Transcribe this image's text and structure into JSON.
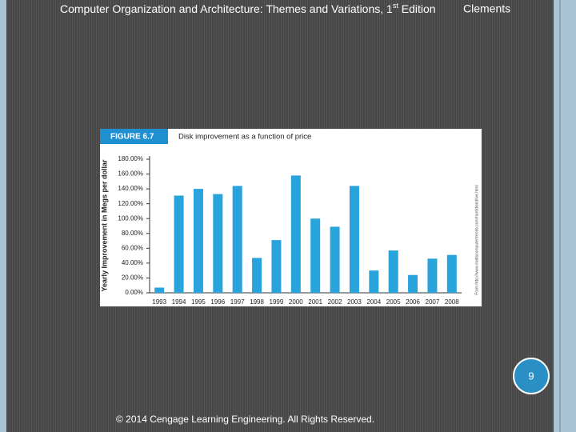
{
  "header": {
    "title_parts": [
      "Computer Organization and Architecture: Themes and Variations, 1",
      "st",
      " Edition"
    ],
    "author": "Clements"
  },
  "slide_number": 9,
  "footer": "© 2014 Cengage Learning Engineering. All Rights Reserved.",
  "chart_data": {
    "type": "bar",
    "title": "FIGURE 6.7",
    "subtitle": "Disk improvement as a function of price",
    "y_label": "Yearly Improvement in Megs per dollar",
    "source": "From http://www.mattscomputertrends.com/harddiskdrive.html",
    "categories": [
      "1993",
      "1994",
      "1995",
      "1996",
      "1997",
      "1998",
      "1999",
      "2000",
      "2001",
      "2002",
      "2003",
      "2004",
      "2005",
      "2006",
      "2007",
      "2008"
    ],
    "values": [
      7,
      131,
      140,
      133,
      144,
      47,
      71,
      158,
      100,
      89,
      144,
      30,
      57,
      24,
      46,
      51
    ],
    "color": "#29a3dc",
    "ylim": [
      0,
      180
    ],
    "yticks": [
      {
        "value": 0,
        "label": "0.00%"
      },
      {
        "value": 20,
        "label": "20.00%"
      },
      {
        "value": 40,
        "label": "40.00%"
      },
      {
        "value": 60,
        "label": "60.00%"
      },
      {
        "value": 80,
        "label": "80.00%"
      },
      {
        "value": 100,
        "label": "100.00%"
      },
      {
        "value": 120,
        "label": "120.00%"
      },
      {
        "value": 140,
        "label": "140.00%"
      },
      {
        "value": 160,
        "label": "160.00%"
      },
      {
        "value": 180,
        "label": "180.00%"
      }
    ]
  }
}
